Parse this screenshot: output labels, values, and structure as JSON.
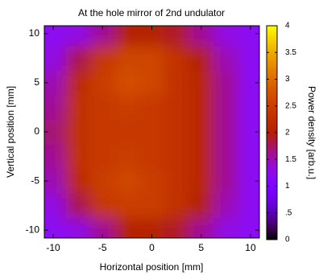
{
  "chart_data": {
    "type": "heatmap",
    "title": "At the hole mirror of 2nd undulator",
    "x_label": "Horizontal position [mm]",
    "y_label": "Vertical position [mm]",
    "colorbar_label": "Power density [arb.u.]",
    "x": [
      -10,
      -7.5,
      -5,
      -2.5,
      0,
      2.5,
      5,
      7.5,
      10
    ],
    "y": [
      -10,
      -7.5,
      -5,
      -2.5,
      0,
      2.5,
      5,
      7.5,
      10
    ],
    "z": [
      [
        1.2,
        1.3,
        1.6,
        2.0,
        2.0,
        1.9,
        1.6,
        1.3,
        1.2
      ],
      [
        1.3,
        1.8,
        2.4,
        2.5,
        2.5,
        2.3,
        2.0,
        1.5,
        1.2
      ],
      [
        1.5,
        2.2,
        2.5,
        2.6,
        2.5,
        2.3,
        2.1,
        1.6,
        1.2
      ],
      [
        1.6,
        2.3,
        2.4,
        2.5,
        2.4,
        2.3,
        2.1,
        1.6,
        1.2
      ],
      [
        1.7,
        2.3,
        2.4,
        2.4,
        2.4,
        2.3,
        2.1,
        1.6,
        1.2
      ],
      [
        1.6,
        2.3,
        2.4,
        2.5,
        2.4,
        2.3,
        2.1,
        1.6,
        1.2
      ],
      [
        1.5,
        2.2,
        2.5,
        2.7,
        2.6,
        2.3,
        2.1,
        1.6,
        1.2
      ],
      [
        1.3,
        1.8,
        2.4,
        2.6,
        2.6,
        2.3,
        2.0,
        1.5,
        1.2
      ],
      [
        1.2,
        1.3,
        1.6,
        2.0,
        2.0,
        1.9,
        1.6,
        1.3,
        1.2
      ]
    ],
    "xlim": [
      -10.9,
      10.9
    ],
    "ylim": [
      -10.8,
      10.8
    ],
    "xticks": [
      -10,
      -5,
      0,
      5,
      10
    ],
    "yticks": [
      -10,
      -5,
      0,
      5,
      10
    ],
    "clim": [
      0,
      4
    ],
    "cticks": [
      0,
      {
        "value": 0.5,
        "label": ".5"
      },
      1,
      1.5,
      2,
      2.5,
      3,
      3.5,
      4
    ],
    "colormap": "gnuplot"
  }
}
